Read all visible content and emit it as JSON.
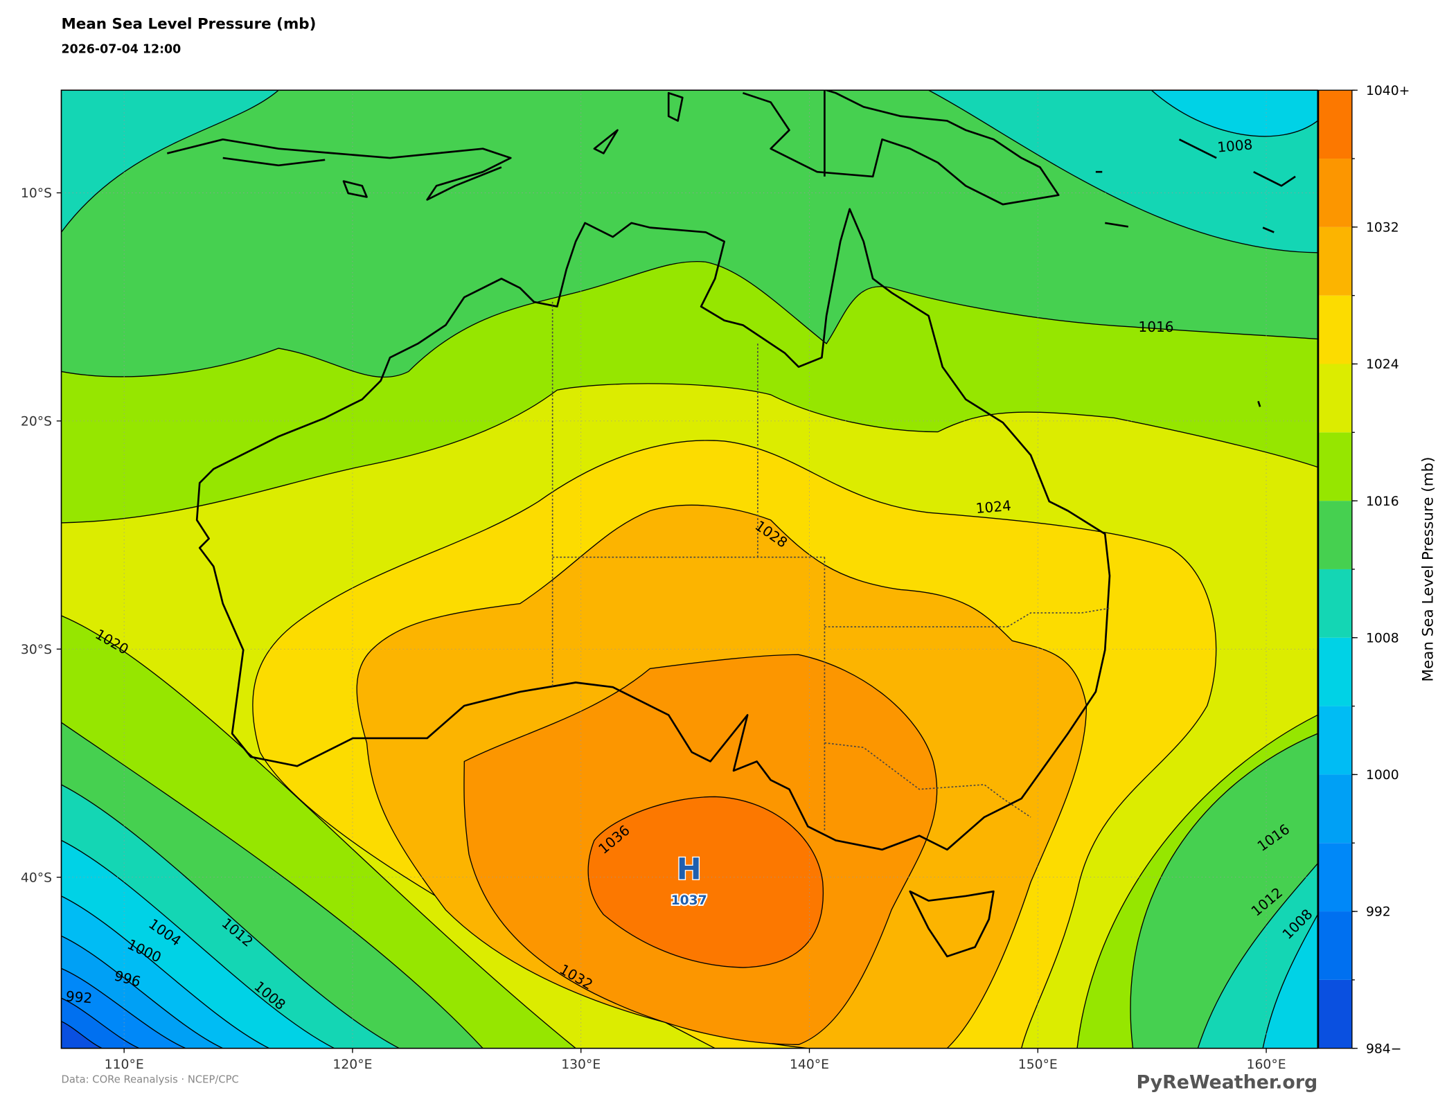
{
  "header": {
    "title": "Mean Sea Level Pressure (mb)",
    "subtitle": "2026-07-04 12:00"
  },
  "map": {
    "xlim": [
      107.25,
      162.25
    ],
    "ylim": [
      -47.5,
      -5.5
    ],
    "grid": true,
    "xticks": [
      {
        "value": 110,
        "label": "110°E"
      },
      {
        "value": 120,
        "label": "120°E"
      },
      {
        "value": 130,
        "label": "130°E"
      },
      {
        "value": 140,
        "label": "140°E"
      },
      {
        "value": 150,
        "label": "150°E"
      },
      {
        "value": 160,
        "label": "160°E"
      }
    ],
    "yticks": [
      {
        "value": -10,
        "label": "10°S"
      },
      {
        "value": -20,
        "label": "20°S"
      },
      {
        "value": -30,
        "label": "30°S"
      },
      {
        "value": -40,
        "label": "40°S"
      }
    ]
  },
  "colorbar": {
    "label": "Mean Sea Level Pressure (mb)",
    "levels": [
      984,
      988,
      992,
      996,
      1000,
      1004,
      1008,
      1012,
      1016,
      1020,
      1024,
      1028,
      1032,
      1036,
      1040
    ],
    "colors": [
      "#0a50e0",
      "#0070f0",
      "#0088f8",
      "#00a0f5",
      "#00bcf4",
      "#00d2e6",
      "#14d6b4",
      "#46d050",
      "#96e600",
      "#dcec00",
      "#fcdc00",
      "#fcb400",
      "#fc9600",
      "#fc7800"
    ],
    "ticks": [
      {
        "value": 984,
        "label": "984−"
      },
      992,
      1000,
      1008,
      1016,
      1024,
      1032,
      {
        "value": 1040,
        "label": "1040+"
      }
    ]
  },
  "contour_labels": [
    1016,
    1024,
    1028,
    1020,
    1036,
    1032,
    1004,
    1012,
    1000,
    1008,
    996,
    992,
    1008,
    1016,
    1012,
    1008
  ],
  "high": {
    "symbol": "H",
    "value": 1037
  },
  "footer": {
    "source": "Data: CORe Reanalysis  ·  NCEP/CPC",
    "site": "PyReWeather.org"
  }
}
